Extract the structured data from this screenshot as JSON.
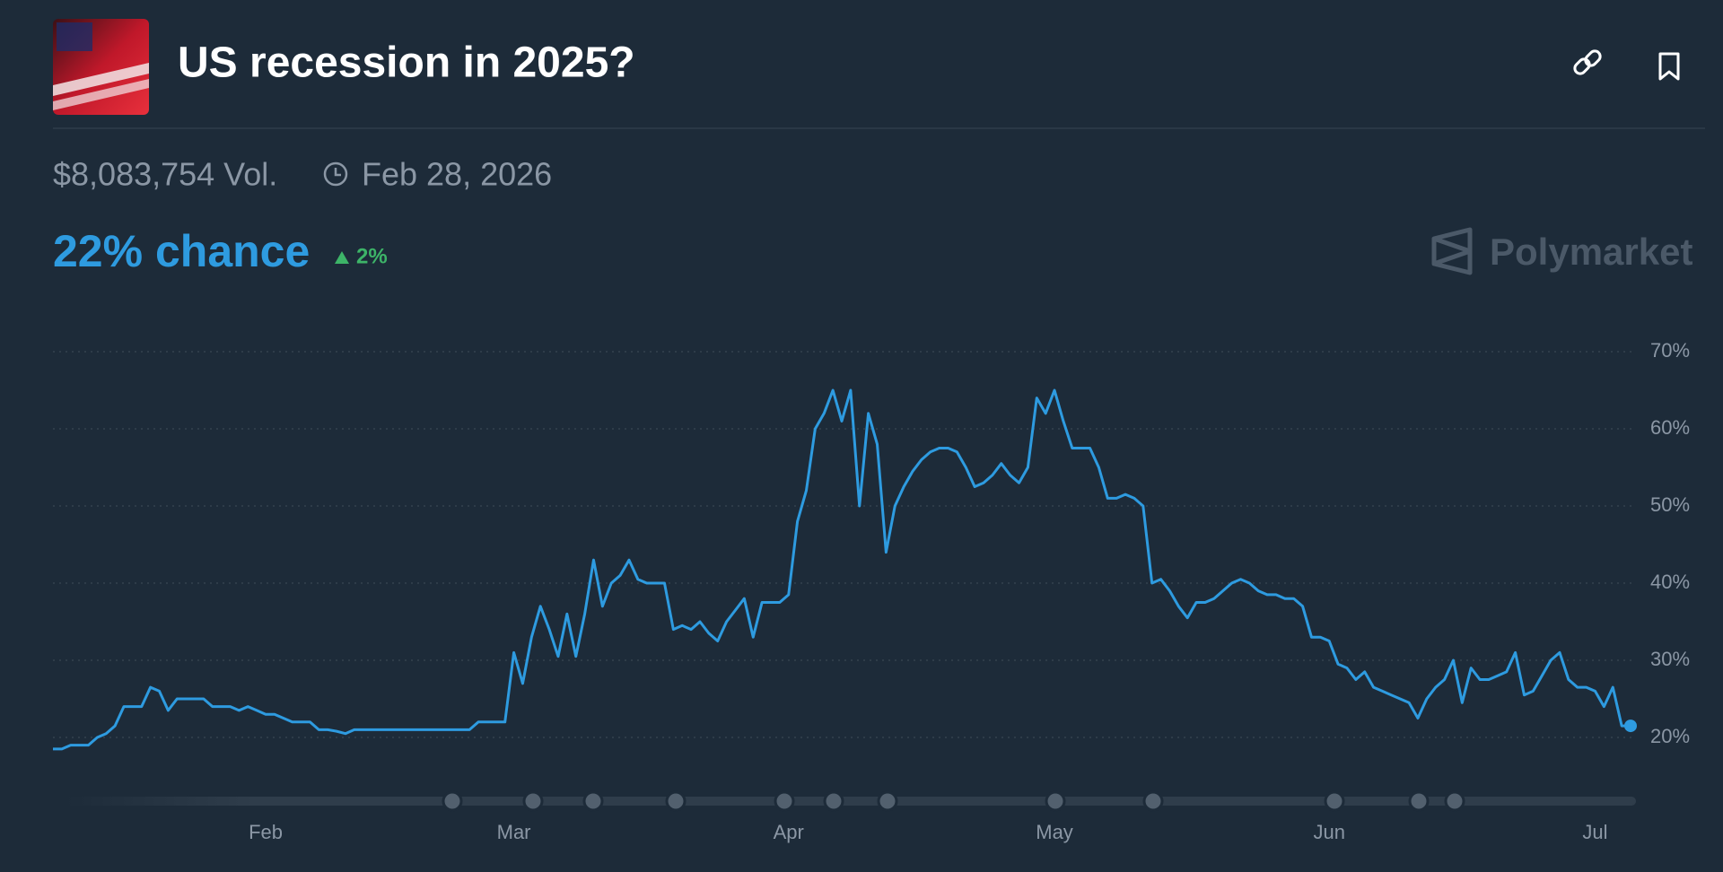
{
  "header": {
    "title": "US recession in 2025?",
    "volume": "$8,083,754 Vol.",
    "end_date": "Feb 28, 2026"
  },
  "chance": {
    "text": "22% chance",
    "change": "2%"
  },
  "brand": "Polymarket",
  "chart_data": {
    "type": "line",
    "color": "#2e9be0",
    "grid": true,
    "ylim": [
      17,
      72
    ],
    "yticks": [
      {
        "value": 20,
        "label": "20%"
      },
      {
        "value": 30,
        "label": "30%"
      },
      {
        "value": 40,
        "label": "40%"
      },
      {
        "value": 50,
        "label": "50%"
      },
      {
        "value": 60,
        "label": "60%"
      },
      {
        "value": 70,
        "label": "70%"
      }
    ],
    "categories": [
      null,
      null,
      null,
      null,
      null,
      null,
      null,
      null,
      null,
      null,
      null,
      null,
      null,
      null,
      null,
      null,
      null,
      null,
      null,
      null,
      null,
      null,
      null,
      null,
      "Feb",
      null,
      null,
      null,
      null,
      null,
      null,
      null,
      null,
      null,
      null,
      null,
      null,
      null,
      null,
      null,
      null,
      null,
      null,
      null,
      null,
      null,
      null,
      null,
      null,
      null,
      null,
      null,
      "Mar",
      null,
      null,
      null,
      null,
      null,
      null,
      null,
      null,
      null,
      null,
      null,
      null,
      null,
      null,
      null,
      null,
      null,
      null,
      null,
      null,
      null,
      null,
      null,
      null,
      null,
      null,
      null,
      null,
      null,
      null,
      "Apr",
      null,
      null,
      null,
      null,
      null,
      null,
      null,
      null,
      null,
      null,
      null,
      null,
      null,
      null,
      null,
      null,
      null,
      null,
      null,
      null,
      null,
      null,
      null,
      null,
      null,
      null,
      null,
      null,
      null,
      "May",
      null,
      null,
      null,
      null,
      null,
      null,
      null,
      null,
      null,
      null,
      null,
      null,
      null,
      null,
      null,
      null,
      null,
      null,
      null,
      null,
      null,
      null,
      null,
      null,
      null,
      null,
      null,
      null,
      null,
      null,
      "Jun",
      null,
      null,
      null,
      null,
      null,
      null,
      null,
      null,
      null,
      null,
      null,
      null,
      null,
      null,
      null,
      null,
      null,
      null,
      null,
      null,
      null,
      null,
      null,
      null,
      null,
      null,
      null,
      null,
      null,
      "Jul",
      null,
      null,
      null,
      null
    ],
    "values": [
      18.5,
      18.5,
      19,
      19,
      19,
      20,
      20.5,
      21.5,
      24,
      24,
      24,
      26.5,
      26,
      23.5,
      25,
      25,
      25,
      25,
      24,
      24,
      24,
      23.5,
      24,
      23.5,
      23,
      23,
      22.5,
      22,
      22,
      22,
      21,
      21,
      20.8,
      20.5,
      21,
      21,
      21,
      21,
      21,
      21,
      21,
      21,
      21,
      21,
      21,
      21,
      21,
      21,
      22,
      22,
      22,
      22,
      31,
      27,
      33,
      37,
      34,
      30.5,
      36,
      30.5,
      36,
      43,
      37,
      40,
      41,
      43,
      40.5,
      40,
      40,
      40,
      34,
      34.5,
      34,
      35,
      33.5,
      32.5,
      35,
      36.5,
      38,
      33,
      37.5,
      37.5,
      37.5,
      38.5,
      48,
      52,
      60,
      62,
      65,
      61,
      65,
      50,
      62,
      58,
      44,
      50,
      52.5,
      54.5,
      56,
      57,
      57.5,
      57.5,
      57,
      55,
      52.5,
      53,
      54,
      55.5,
      54,
      53,
      55,
      64,
      62,
      65,
      61,
      57.5,
      57.5,
      57.5,
      55,
      51,
      51,
      51.5,
      51,
      50,
      40,
      40.5,
      39,
      37,
      35.5,
      37.5,
      37.5,
      38,
      39,
      40,
      40.5,
      40,
      39,
      38.5,
      38.5,
      38,
      38,
      37,
      33,
      33,
      32.5,
      29.5,
      29,
      27.5,
      28.5,
      26.5,
      26,
      25.5,
      25,
      24.5,
      22.5,
      25,
      26.5,
      27.5,
      30,
      24.5,
      29,
      27.5,
      27.5,
      28,
      28.5,
      31,
      25.5,
      26,
      28,
      30,
      31,
      27.5,
      26.5,
      26.5,
      26,
      24,
      26.5,
      21.5,
      21.5
    ]
  }
}
